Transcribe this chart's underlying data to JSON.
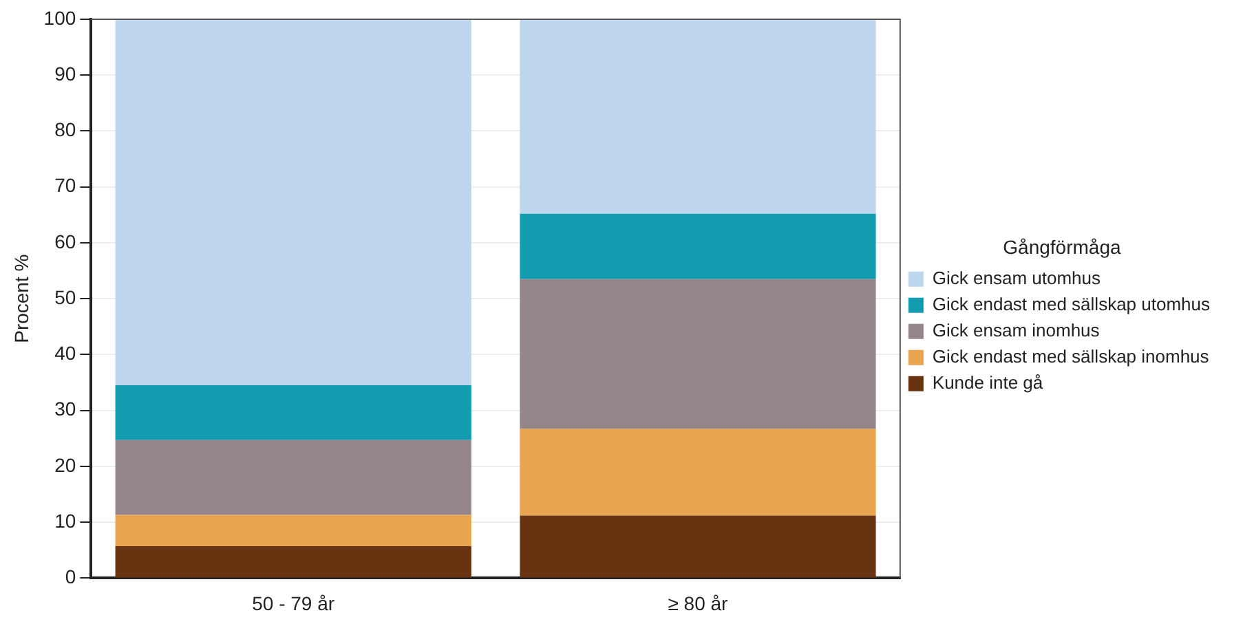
{
  "chart_data": {
    "type": "bar",
    "stacked": true,
    "ylabel": "Procent %",
    "legend_title": "Gångförmåga",
    "legend": "right",
    "grid": "y",
    "categories": [
      "50 - 79 år",
      "≥ 80 år"
    ],
    "ylim": [
      0,
      100
    ],
    "yticks": [
      0,
      10,
      20,
      30,
      40,
      50,
      60,
      70,
      80,
      90,
      100
    ],
    "series": [
      {
        "name": "Kunde inte gå",
        "color": "#673310",
        "values": [
          5.7,
          11.2
        ]
      },
      {
        "name": "Gick endast med sällskap inomhus",
        "color": "#e8a450",
        "values": [
          5.6,
          15.5
        ]
      },
      {
        "name": "Gick ensam inomhus",
        "color": "#948589",
        "values": [
          13.4,
          26.8
        ]
      },
      {
        "name": "Gick endast med sällskap utomhus",
        "color": "#139cb0",
        "values": [
          9.8,
          11.7
        ]
      },
      {
        "name": "Gick ensam utomhus",
        "color": "#bdd6ee",
        "values": [
          65.5,
          34.8
        ]
      }
    ]
  }
}
